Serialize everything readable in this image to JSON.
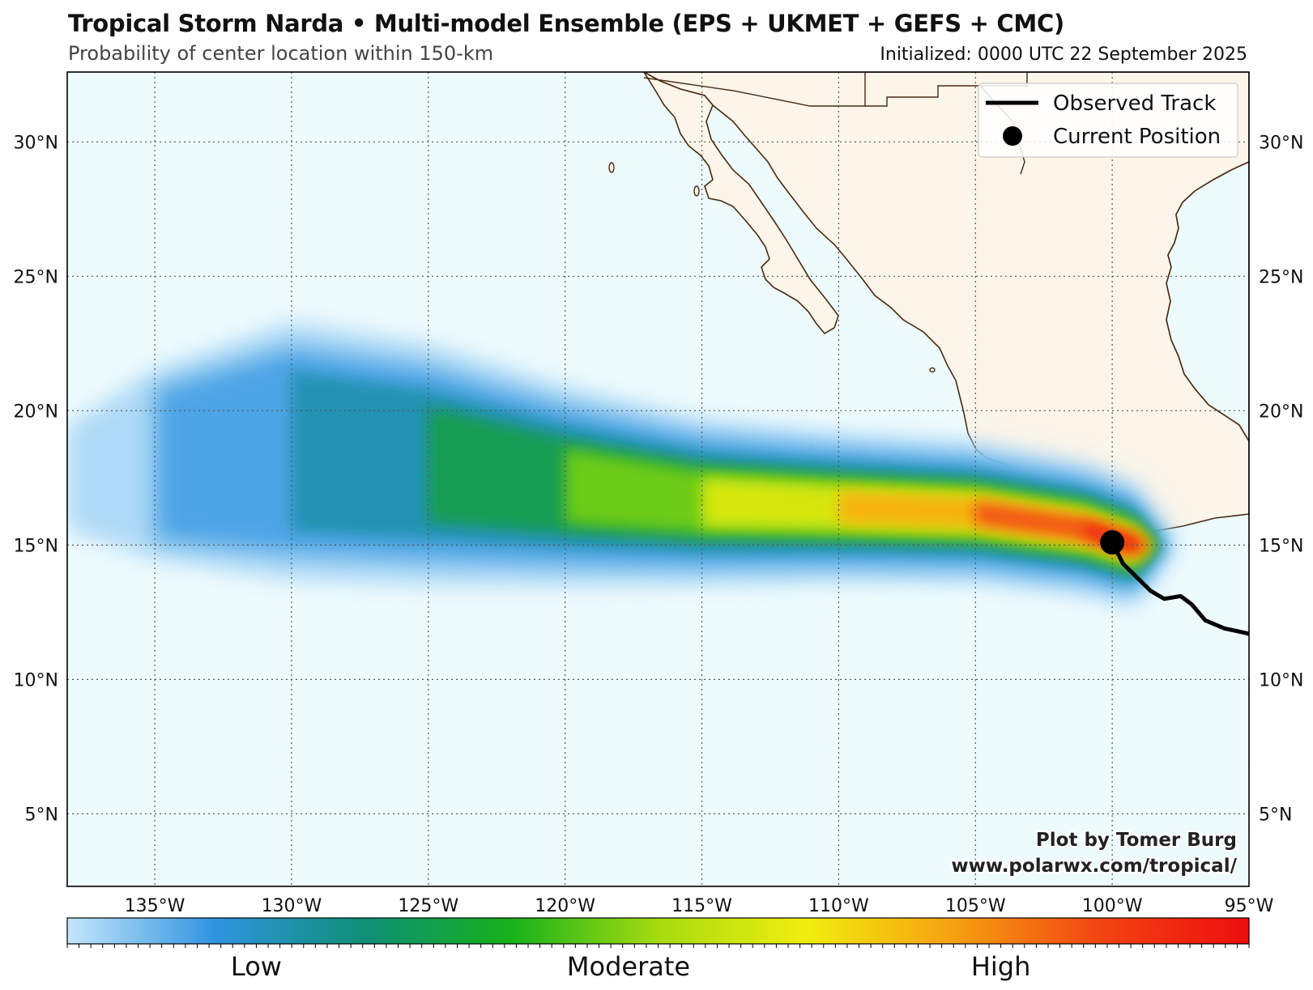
{
  "header": {
    "title": "Tropical Storm Narda • Multi-model Ensemble (EPS + UKMET + GEFS + CMC)",
    "subtitle": "Probability of center location within 150-km",
    "initialized": "Initialized: 0000 UTC 22 September 2025"
  },
  "map": {
    "lon_range": [
      -138.2,
      -95
    ],
    "lat_range": [
      2.3,
      32.6
    ],
    "lon_ticks": [
      {
        "value": -135,
        "label": "135°W"
      },
      {
        "value": -130,
        "label": "130°W"
      },
      {
        "value": -125,
        "label": "125°W"
      },
      {
        "value": -120,
        "label": "120°W"
      },
      {
        "value": -115,
        "label": "115°W"
      },
      {
        "value": -110,
        "label": "110°W"
      },
      {
        "value": -105,
        "label": "105°W"
      },
      {
        "value": -100,
        "label": "100°W"
      },
      {
        "value": -95,
        "label": "95°W"
      }
    ],
    "lat_ticks": [
      {
        "value": 30,
        "label": "30°N"
      },
      {
        "value": 25,
        "label": "25°N"
      },
      {
        "value": 20,
        "label": "20°N"
      },
      {
        "value": 15,
        "label": "15°N"
      },
      {
        "value": 10,
        "label": "10°N"
      },
      {
        "value": 5,
        "label": "5°N"
      }
    ],
    "grid": true,
    "ocean_color": "#eefbfd",
    "land_color": "#fbf5ea",
    "coast_color": "#4a2a12"
  },
  "observed_track": [
    [
      -95.0,
      11.7
    ],
    [
      -95.9,
      11.9
    ],
    [
      -96.6,
      12.2
    ],
    [
      -97.1,
      12.8
    ],
    [
      -97.5,
      13.1
    ],
    [
      -98.1,
      13.0
    ],
    [
      -98.6,
      13.3
    ],
    [
      -99.1,
      13.8
    ],
    [
      -99.6,
      14.3
    ],
    [
      -100.0,
      15.1
    ]
  ],
  "current_position": [
    -100.0,
    15.1
  ],
  "probability_axis": [
    -118.3,
    -112.0,
    -106.0,
    -103.0,
    -101.0,
    -99.6
  ],
  "probability_levels": [
    {
      "lon": -138.2,
      "lat": 17.5,
      "half_width": 1.2,
      "level": 0.02
    },
    {
      "lon": -135.0,
      "lat": 18.0,
      "half_width": 2.2,
      "level": 0.05
    },
    {
      "lon": -130.0,
      "lat": 18.5,
      "half_width": 3.0,
      "level": 0.12
    },
    {
      "lon": -125.0,
      "lat": 18.0,
      "half_width": 2.8,
      "level": 0.22
    },
    {
      "lon": -120.0,
      "lat": 17.2,
      "half_width": 2.3,
      "level": 0.4
    },
    {
      "lon": -115.0,
      "lat": 16.6,
      "half_width": 1.9,
      "level": 0.58
    },
    {
      "lon": -110.0,
      "lat": 16.4,
      "half_width": 1.7,
      "level": 0.72
    },
    {
      "lon": -105.0,
      "lat": 16.2,
      "half_width": 1.6,
      "level": 0.82
    },
    {
      "lon": -101.0,
      "lat": 15.6,
      "half_width": 1.5,
      "level": 0.92
    },
    {
      "lon": -99.2,
      "lat": 15.0,
      "half_width": 1.4,
      "level": 0.97
    }
  ],
  "legend": {
    "items": [
      {
        "label": "Observed Track",
        "kind": "line"
      },
      {
        "label": "Current Position",
        "kind": "dot"
      }
    ]
  },
  "credit": {
    "line1": "Plot by Tomer Burg",
    "line2": "www.polarwx.com/tropical/"
  },
  "colorbar": {
    "colors": [
      "#c6e6fa",
      "#2f94e0",
      "#0f8f78",
      "#16b21a",
      "#a6db10",
      "#f1ee0e",
      "#f7a010",
      "#f24412",
      "#ee0d0d"
    ],
    "labels": [
      {
        "pos": 0.16,
        "label": "Low"
      },
      {
        "pos": 0.475,
        "label": "Moderate"
      },
      {
        "pos": 0.79,
        "label": "High"
      }
    ]
  }
}
